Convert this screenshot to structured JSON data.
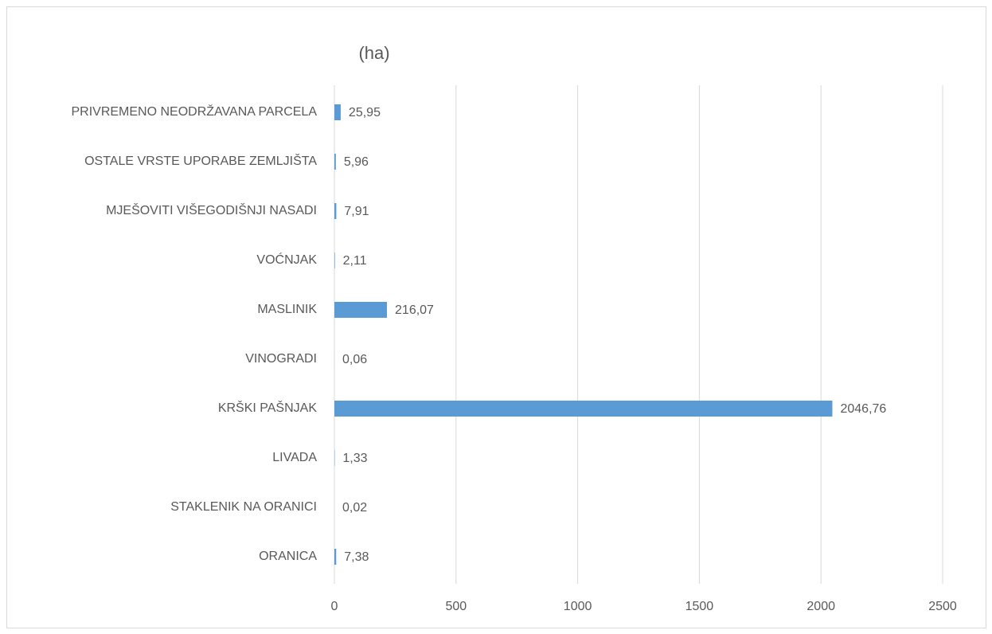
{
  "chart_data": {
    "type": "bar",
    "orientation": "horizontal",
    "title": "(ha)",
    "categories": [
      "PRIVREMENO NEODRŽAVANA PARCELA",
      "OSTALE VRSTE UPORABE ZEMLJIŠTA",
      "MJEŠOVITI VIŠEGODIŠNJI NASADI",
      "VOĆNJAK",
      "MASLINIK",
      "VINOGRADI",
      "KRŠKI PAŠNJAK",
      "LIVADA",
      "STAKLENIK NA ORANICI",
      "ORANICA"
    ],
    "values": [
      25.95,
      5.96,
      7.91,
      2.11,
      216.07,
      0.06,
      2046.76,
      1.33,
      0.02,
      7.38
    ],
    "value_labels": [
      "25,95",
      "5,96",
      "7,91",
      "2,11",
      "216,07",
      "0,06",
      "2046,76",
      "1,33",
      "0,02",
      "7,38"
    ],
    "color": "#5b9bd5",
    "xlim": [
      0,
      2500
    ],
    "xticks": [
      0,
      500,
      1000,
      1500,
      2000,
      2500
    ],
    "grid": true
  }
}
